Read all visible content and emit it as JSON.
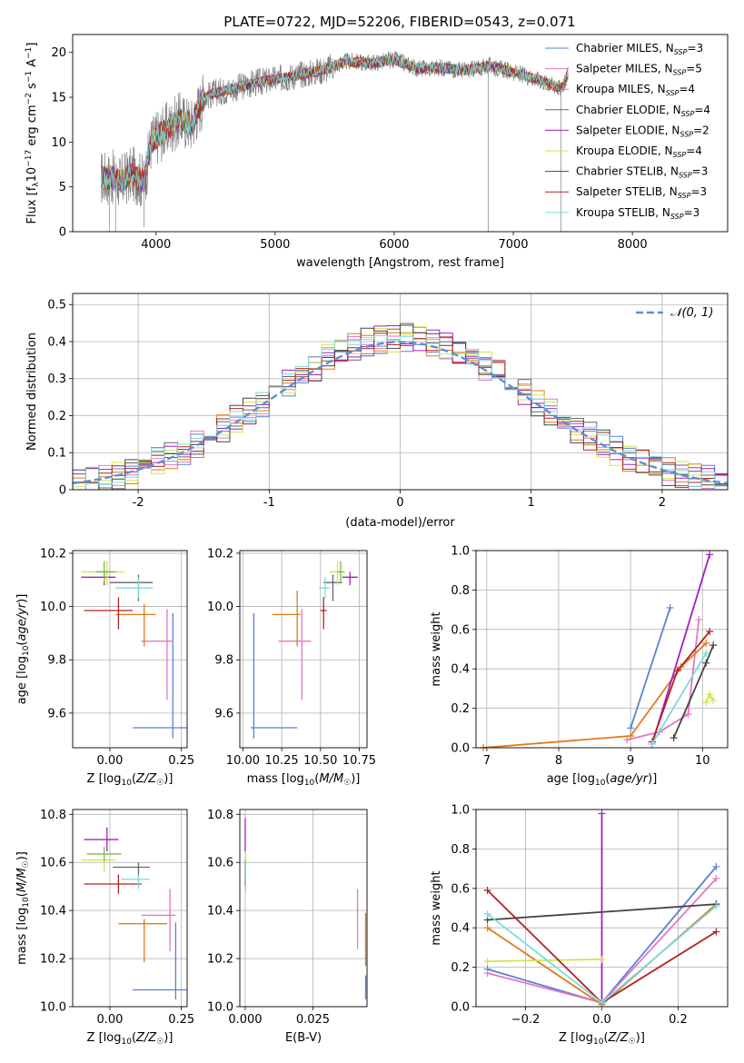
{
  "figure": {
    "title": "PLATE=0722, MJD=52206, FIBERID=0543, z=0.071"
  },
  "chart_data": [
    {
      "type": "line",
      "xlabel": "wavelength [Angstrom, rest frame]",
      "ylabel": "Flux [fλ10⁻¹⁷ erg cm⁻² s⁻¹ A⁻¹]",
      "xlim": [
        3300,
        8800
      ],
      "ylim": [
        0,
        22
      ],
      "xticks": [
        4000,
        5000,
        6000,
        7000,
        8000
      ],
      "yticks": [
        0,
        5,
        10,
        15,
        20
      ],
      "grid": false,
      "legend_placement": "top-right",
      "legend": [
        {
          "name": "Chabrier MILES, N_SSP=3",
          "label": "Chabrier MILES, N",
          "sub": "SSP",
          "tail": "=3",
          "color": "#5b7fd6"
        },
        {
          "name": "Salpeter MILES, N_SSP=5",
          "label": "Salpeter MILES, N",
          "sub": "SSP",
          "tail": "=5",
          "color": "#e377c2"
        },
        {
          "name": "Kroupa MILES, N_SSP=4",
          "label": "Kroupa MILES, N",
          "sub": "SSP",
          "tail": "=4",
          "color": "#e07b18"
        },
        {
          "name": "Chabrier ELODIE, N_SSP=4",
          "label": "Chabrier ELODIE, N",
          "sub": "SSP",
          "tail": "=4",
          "color": "#666666"
        },
        {
          "name": "Salpeter ELODIE, N_SSP=2",
          "label": "Salpeter ELODIE, N",
          "sub": "SSP",
          "tail": "=2",
          "color": "#a020c0"
        },
        {
          "name": "Kroupa ELODIE, N_SSP=4",
          "label": "Kroupa ELODIE, N",
          "sub": "SSP",
          "tail": "=4",
          "color": "#d4e34a"
        },
        {
          "name": "Chabrier STELIB, N_SSP=3",
          "label": "Chabrier STELIB, N",
          "sub": "SSP",
          "tail": "=3",
          "color": "#444444"
        },
        {
          "name": "Salpeter STELIB, N_SSP=3",
          "label": "Salpeter STELIB, N",
          "sub": "SSP",
          "tail": "=3",
          "color": "#b22222"
        },
        {
          "name": "Kroupa STELIB, N_SSP=3",
          "label": "Kroupa STELIB, N",
          "sub": "SSP",
          "tail": "=3",
          "color": "#78dcdc"
        }
      ],
      "data_color": "#808080",
      "continuum_anchors": {
        "x": [
          3540,
          3640,
          3700,
          3800,
          3900,
          3960,
          4000,
          4100,
          4200,
          4300,
          4400,
          4500,
          4600,
          4800,
          5000,
          5200,
          5400,
          5600,
          5800,
          6000,
          6200,
          6400,
          6600,
          6800,
          7000,
          7200,
          7400,
          7460
        ],
        "y": [
          6.0,
          6.0,
          5.5,
          6.5,
          5.5,
          10.0,
          10.5,
          11.5,
          12.5,
          12.0,
          15.0,
          15.5,
          15.8,
          16.5,
          17.0,
          17.5,
          18.0,
          19.0,
          18.8,
          19.2,
          18.2,
          18.3,
          18.0,
          18.5,
          17.8,
          17.0,
          16.0,
          17.5
        ]
      }
    },
    {
      "type": "bar",
      "xlabel": "(data-model)/error",
      "ylabel": "Normed distribution",
      "xlim": [
        -2.5,
        2.5
      ],
      "ylim": [
        0,
        0.53
      ],
      "xticks": [
        -2,
        -1,
        0,
        1,
        2
      ],
      "yticks": [
        0.0,
        0.1,
        0.2,
        0.3,
        0.4,
        0.5
      ],
      "grid": true,
      "legend_placement": "top-right",
      "legend": [
        {
          "name": "N(0,1)",
          "label": "𝒩(0, 1)",
          "color": "#5b8fd6"
        }
      ],
      "bin_width": 0.1,
      "series": [
        {
          "color": "#5b7fd6",
          "seed": 1
        },
        {
          "color": "#e377c2",
          "seed": 2
        },
        {
          "color": "#e07b18",
          "seed": 3
        },
        {
          "color": "#666666",
          "seed": 4
        },
        {
          "color": "#a020c0",
          "seed": 5
        },
        {
          "color": "#d4e34a",
          "seed": 6
        },
        {
          "color": "#444444",
          "seed": 7
        },
        {
          "color": "#b22222",
          "seed": 8
        },
        {
          "color": "#78dcdc",
          "seed": 9
        }
      ]
    },
    {
      "type": "scatter",
      "xlabel": "Z [log₁₀(Z/Z☉)]",
      "ylabel": "age [log₁₀(age/yr)]",
      "xlim": [
        -0.13,
        0.27
      ],
      "ylim": [
        9.47,
        10.21
      ],
      "xticks": [
        0.0,
        0.25
      ],
      "xticklabels": [
        "0.00",
        "0.25"
      ],
      "yticks": [
        9.6,
        9.8,
        10.0,
        10.2
      ],
      "yticklabels": [
        "9.6",
        "9.8",
        "10.0",
        "10.2"
      ],
      "grid": true,
      "points": [
        {
          "x": 0.22,
          "y": 9.545,
          "xerr": [
            0.14,
            0.05
          ],
          "yerr": [
            0.04,
            0.43
          ],
          "color": "#5b7fd6"
        },
        {
          "x": 0.2,
          "y": 9.87,
          "xerr": [
            0.09,
            0.02
          ],
          "yerr": [
            0.22,
            0.12
          ],
          "color": "#e377c2"
        },
        {
          "x": 0.12,
          "y": 9.97,
          "xerr": [
            0.1,
            0.04
          ],
          "yerr": [
            0.12,
            0.04
          ],
          "color": "#e07b18"
        },
        {
          "x": 0.1,
          "y": 10.09,
          "xerr": [
            0.1,
            0.05
          ],
          "yerr": [
            0.07,
            0.03
          ],
          "color": "#666666"
        },
        {
          "x": -0.02,
          "y": 10.11,
          "xerr": [
            0.08,
            0.04
          ],
          "yerr": [
            0.03,
            0.02
          ],
          "color": "#a020c0"
        },
        {
          "x": -0.01,
          "y": 10.13,
          "xerr": [
            0.09,
            0.06
          ],
          "yerr": [
            0.05,
            0.04
          ],
          "color": "#d4e34a"
        },
        {
          "x": -0.02,
          "y": 10.13,
          "xerr": [
            0.03,
            0.04
          ],
          "yerr": [
            0.04,
            0.04
          ],
          "color": "#77bb44"
        },
        {
          "x": 0.03,
          "y": 9.985,
          "xerr": [
            0.12,
            0.05
          ],
          "yerr": [
            0.07,
            0.05
          ],
          "color": "#b22222"
        },
        {
          "x": 0.1,
          "y": 10.07,
          "xerr": [
            0.08,
            0.05
          ],
          "yerr": [
            0.04,
            0.04
          ],
          "color": "#78dcdc"
        }
      ]
    },
    {
      "type": "scatter",
      "xlabel": "mass [log₁₀(M/M☉)]",
      "ylabel": "",
      "xlim": [
        9.98,
        10.8
      ],
      "ylim": [
        9.47,
        10.21
      ],
      "xticks": [
        10.0,
        10.25,
        10.5,
        10.75
      ],
      "xticklabels": [
        "10.00",
        "10.25",
        "10.50",
        "10.75"
      ],
      "yticks": [
        9.6,
        9.8,
        10.0,
        10.2
      ],
      "yticklabels": [
        "9.6",
        "9.8",
        "10.0",
        "10.2"
      ],
      "grid": true,
      "points": [
        {
          "x": 10.07,
          "y": 9.545,
          "xerr": [
            0.02,
            0.28
          ],
          "yerr": [
            0.04,
            0.43
          ],
          "color": "#5b7fd6"
        },
        {
          "x": 10.38,
          "y": 9.87,
          "xerr": [
            0.15,
            0.06
          ],
          "yerr": [
            0.22,
            0.12
          ],
          "color": "#e377c2"
        },
        {
          "x": 10.35,
          "y": 9.97,
          "xerr": [
            0.16,
            0.02
          ],
          "yerr": [
            0.12,
            0.09
          ],
          "color": "#e07b18"
        },
        {
          "x": 10.58,
          "y": 10.09,
          "xerr": [
            0.06,
            0.06
          ],
          "yerr": [
            0.07,
            0.03
          ],
          "color": "#666666"
        },
        {
          "x": 10.69,
          "y": 10.11,
          "xerr": [
            0.05,
            0.05
          ],
          "yerr": [
            0.03,
            0.02
          ],
          "color": "#a020c0"
        },
        {
          "x": 10.61,
          "y": 10.13,
          "xerr": [
            0.05,
            0.05
          ],
          "yerr": [
            0.05,
            0.04
          ],
          "color": "#d4e34a"
        },
        {
          "x": 10.63,
          "y": 10.13,
          "xerr": [
            0.02,
            0.02
          ],
          "yerr": [
            0.04,
            0.04
          ],
          "color": "#77bb44"
        },
        {
          "x": 10.52,
          "y": 9.985,
          "xerr": [
            0.02,
            0.02
          ],
          "yerr": [
            0.07,
            0.05
          ],
          "color": "#b22222"
        },
        {
          "x": 10.53,
          "y": 10.07,
          "xerr": [
            0.04,
            0.03
          ],
          "yerr": [
            0.04,
            0.04
          ],
          "color": "#78dcdc"
        }
      ]
    },
    {
      "type": "line",
      "xlabel": "age [log₁₀(age/yr)]",
      "ylabel": "mass weight",
      "xlim": [
        6.85,
        10.35
      ],
      "ylim": [
        0,
        1
      ],
      "xticks": [
        7,
        8,
        9,
        10
      ],
      "xticklabels": [
        "7",
        "8",
        "9",
        "10"
      ],
      "yticks": [
        0,
        0.2,
        0.4,
        0.6,
        0.8,
        1.0
      ],
      "yticklabels": [
        "0.0",
        "0.2",
        "0.4",
        "0.6",
        "0.8",
        "1.0"
      ],
      "grid": true,
      "series": [
        {
          "color": "#5b7fd6",
          "x": [
            9.0,
            9.55
          ],
          "y": [
            0.1,
            0.71
          ]
        },
        {
          "color": "#e377c2",
          "x": [
            8.95,
            9.4,
            9.8,
            9.95
          ],
          "y": [
            0.04,
            0.08,
            0.17,
            0.65
          ]
        },
        {
          "color": "#e07b18",
          "x": [
            6.95,
            9.0,
            9.7,
            10.05
          ],
          "y": [
            0.0,
            0.06,
            0.41,
            0.53
          ]
        },
        {
          "color": "#444444",
          "x": [
            9.6,
            10.05,
            10.15
          ],
          "y": [
            0.05,
            0.43,
            0.52
          ]
        },
        {
          "color": "#a020c0",
          "x": [
            9.3,
            10.1
          ],
          "y": [
            0.02,
            0.98
          ]
        },
        {
          "color": "#d4e34a",
          "x": [
            10.05,
            10.1,
            10.15
          ],
          "y": [
            0.23,
            0.27,
            0.24
          ]
        },
        {
          "color": "#b22222",
          "x": [
            9.3,
            9.65,
            10.1
          ],
          "y": [
            0.03,
            0.39,
            0.59
          ]
        },
        {
          "color": "#78dcdc",
          "x": [
            9.3,
            10.05
          ],
          "y": [
            0.02,
            0.48
          ]
        }
      ]
    },
    {
      "type": "scatter",
      "xlabel": "Z [log₁₀(Z/Z☉)]",
      "ylabel": "mass [log₁₀(M/M☉)]",
      "xlim": [
        -0.13,
        0.27
      ],
      "ylim": [
        10.0,
        10.82
      ],
      "xticks": [
        0.0,
        0.25
      ],
      "xticklabels": [
        "0.00",
        "0.25"
      ],
      "yticks": [
        10.0,
        10.2,
        10.4,
        10.6,
        10.8
      ],
      "yticklabels": [
        "10.0",
        "10.2",
        "10.4",
        "10.6",
        "10.8"
      ],
      "grid": true,
      "points": [
        {
          "x": 0.23,
          "y": 10.07,
          "xerr": [
            0.15,
            0.04
          ],
          "yerr": [
            0.04,
            0.28
          ],
          "color": "#5b7fd6"
        },
        {
          "x": 0.21,
          "y": 10.38,
          "xerr": [
            0.1,
            0.02
          ],
          "yerr": [
            0.15,
            0.11
          ],
          "color": "#e377c2"
        },
        {
          "x": 0.12,
          "y": 10.345,
          "xerr": [
            0.09,
            0.08
          ],
          "yerr": [
            0.16,
            0.02
          ],
          "color": "#e07b18"
        },
        {
          "x": 0.1,
          "y": 10.58,
          "xerr": [
            0.09,
            0.04
          ],
          "yerr": [
            0.06,
            0.02
          ],
          "color": "#666666"
        },
        {
          "x": -0.01,
          "y": 10.695,
          "xerr": [
            0.08,
            0.04
          ],
          "yerr": [
            0.05,
            0.05
          ],
          "color": "#a020c0"
        },
        {
          "x": -0.02,
          "y": 10.61,
          "xerr": [
            0.08,
            0.04
          ],
          "yerr": [
            0.05,
            0.02
          ],
          "color": "#d4e34a"
        },
        {
          "x": -0.02,
          "y": 10.635,
          "xerr": [
            0.06,
            0.06
          ],
          "yerr": [
            0.03,
            0.03
          ],
          "color": "#77bb44"
        },
        {
          "x": 0.03,
          "y": 10.51,
          "xerr": [
            0.12,
            0.08
          ],
          "yerr": [
            0.04,
            0.04
          ],
          "color": "#b22222"
        },
        {
          "x": 0.1,
          "y": 10.53,
          "xerr": [
            0.06,
            0.04
          ],
          "yerr": [
            0.04,
            0.02
          ],
          "color": "#78dcdc"
        }
      ]
    },
    {
      "type": "scatter",
      "xlabel": "E(B-V)",
      "ylabel": "",
      "xlim": [
        -0.002,
        0.045
      ],
      "ylim": [
        10.0,
        10.82
      ],
      "xticks": [
        0.0,
        0.025
      ],
      "xticklabels": [
        "0.000",
        "0.025"
      ],
      "yticks": [
        10.0,
        10.2,
        10.4,
        10.6,
        10.8
      ],
      "yticklabels": [
        "10.0",
        "10.2",
        "10.4",
        "10.6",
        "10.8"
      ],
      "grid": true,
      "points": [
        {
          "x": 0.0445,
          "y": 10.07,
          "xerr": [
            0,
            0
          ],
          "yerr": [
            0.04,
            0.06
          ],
          "color": "#5b7fd6"
        },
        {
          "x": 0.0415,
          "y": 10.38,
          "xerr": [
            0,
            0
          ],
          "yerr": [
            0.14,
            0.11
          ],
          "color": "#e377c2"
        },
        {
          "x": 0.0445,
          "y": 10.27,
          "xerr": [
            0,
            0
          ],
          "yerr": [
            0.1,
            0.12
          ],
          "color": "#e07b18"
        },
        {
          "x": 0.0,
          "y": 10.58,
          "xerr": [
            0,
            0
          ],
          "yerr": [
            0.04,
            0.03
          ],
          "color": "#666666"
        },
        {
          "x": 0.0,
          "y": 10.695,
          "xerr": [
            0,
            0
          ],
          "yerr": [
            0.05,
            0.09
          ],
          "color": "#a020c0"
        },
        {
          "x": 0.0002,
          "y": 10.61,
          "xerr": [
            0,
            0
          ],
          "yerr": [
            0.05,
            0.03
          ],
          "color": "#d4e34a"
        },
        {
          "x": 0.0,
          "y": 10.52,
          "xerr": [
            0,
            0
          ],
          "yerr": [
            0.02,
            0.02
          ],
          "color": "#b22222"
        },
        {
          "x": 0.0001,
          "y": 10.53,
          "xerr": [
            0,
            0
          ],
          "yerr": [
            0.05,
            0.07
          ],
          "color": "#78dcdc"
        }
      ]
    },
    {
      "type": "line",
      "xlabel": "Z [log₁₀(Z/Z☉)]",
      "ylabel": "mass weight",
      "xlim": [
        -0.33,
        0.33
      ],
      "ylim": [
        0,
        1
      ],
      "xticks": [
        -0.2,
        0.0,
        0.2
      ],
      "xticklabels": [
        "−0.2",
        "0.0",
        "0.2"
      ],
      "yticks": [
        0,
        0.2,
        0.4,
        0.6,
        0.8,
        1.0
      ],
      "yticklabels": [
        "0.0",
        "0.2",
        "0.4",
        "0.6",
        "0.8",
        "1.0"
      ],
      "grid": true,
      "series": [
        {
          "color": "#5b7fd6",
          "x": [
            -0.3,
            0.0,
            0.3
          ],
          "y": [
            0.19,
            0.02,
            0.71
          ]
        },
        {
          "color": "#e377c2",
          "x": [
            -0.3,
            0.0,
            0.3
          ],
          "y": [
            0.17,
            0.02,
            0.65
          ]
        },
        {
          "color": "#e07b18",
          "x": [
            -0.3,
            0.0,
            0.3
          ],
          "y": [
            0.4,
            0.01,
            0.52
          ]
        },
        {
          "color": "#444444",
          "x": [
            -0.3,
            0.3
          ],
          "y": [
            0.44,
            0.52
          ]
        },
        {
          "color": "#a020c0",
          "x": [
            0.0,
            0.0
          ],
          "y": [
            0.98,
            0.02
          ]
        },
        {
          "color": "#d4e34a",
          "x": [
            -0.3,
            0.0
          ],
          "y": [
            0.23,
            0.24
          ]
        },
        {
          "color": "#b22222",
          "x": [
            -0.3,
            0.0,
            0.3
          ],
          "y": [
            0.59,
            0.02,
            0.38
          ]
        },
        {
          "color": "#78dcdc",
          "x": [
            -0.3,
            0.0,
            0.3
          ],
          "y": [
            0.47,
            0.02,
            0.51
          ]
        }
      ]
    }
  ]
}
